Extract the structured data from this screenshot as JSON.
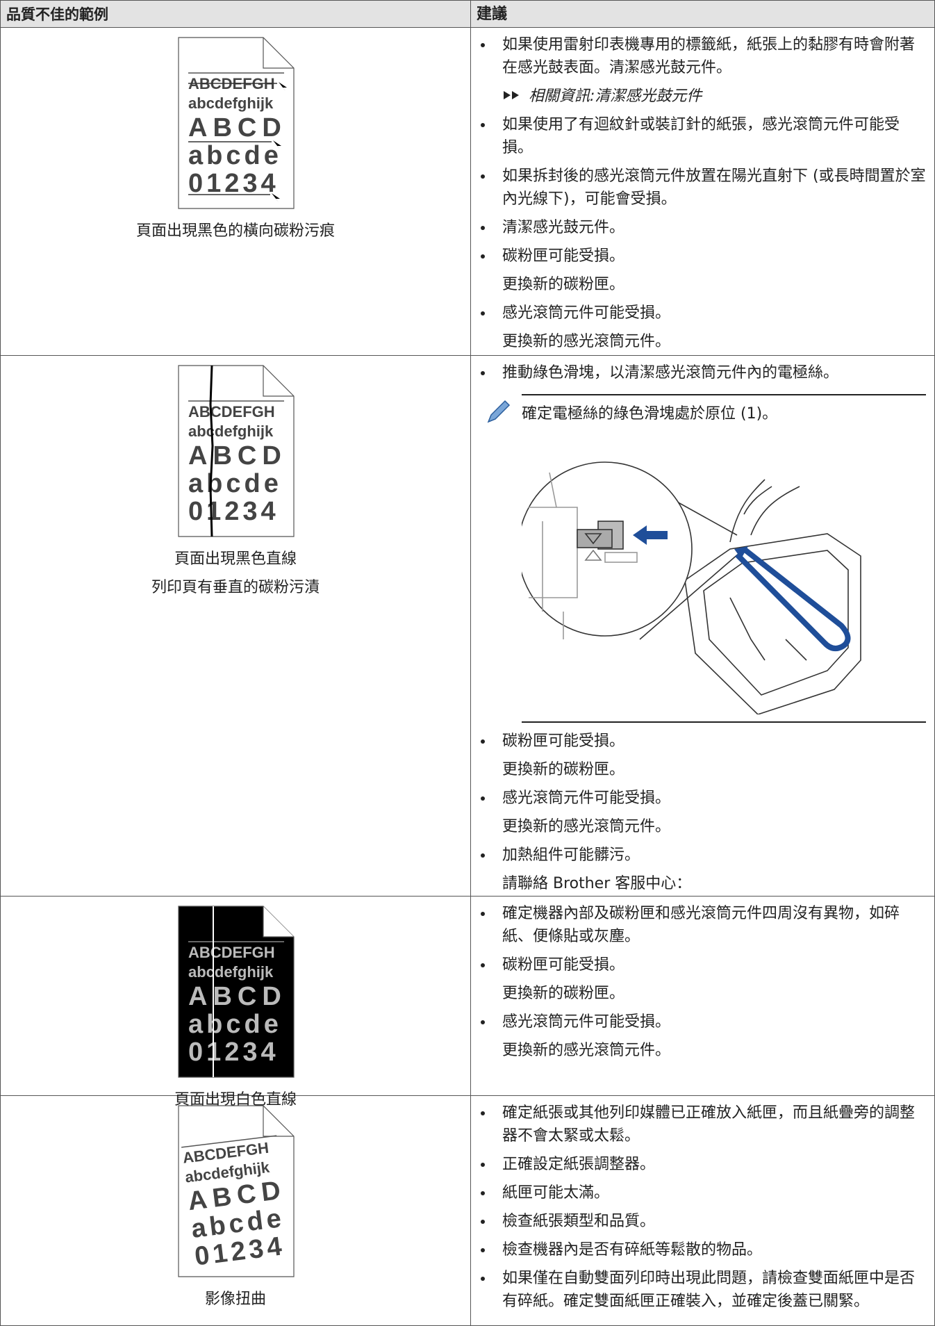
{
  "table": {
    "headers": [
      "品質不佳的範例",
      "建議"
    ],
    "rows": [
      {
        "sample": [
          "ABCDEFGH",
          "abcdefghijk",
          "ABCD",
          "abcde",
          "01234"
        ],
        "caption": [
          "頁面出現黑色的橫向碳粉污痕"
        ],
        "suggestions": [
          {
            "text": "如果使用雷射印表機專用的標籤紙，紙張上的黏膠有時會附著在感光鼓表面。清潔感光鼓元件。",
            "link": "相關資訊:清潔感光鼓元件"
          },
          {
            "text": "如果使用了有迴紋針或裝訂針的紙張，感光滾筒元件可能受損。"
          },
          {
            "text": "如果拆封後的感光滾筒元件放置在陽光直射下 (或長時間置於室內光線下)，可能會受損。"
          },
          {
            "text": "清潔感光鼓元件。"
          },
          {
            "text": "碳粉匣可能受損。",
            "sub": [
              "更換新的碳粉匣。"
            ]
          },
          {
            "text": "感光滾筒元件可能受損。",
            "sub": [
              "更換新的感光滾筒元件。"
            ]
          }
        ]
      },
      {
        "sample": [
          "ABCDEFGH",
          "abcdefghijk",
          "ABCD",
          "abcde",
          "01234"
        ],
        "caption": [
          "頁面出現黑色直線",
          "列印頁有垂直的碳粉污漬"
        ],
        "suggestions": [
          {
            "text": "推動綠色滑塊，以清潔感光滾筒元件內的電極絲。",
            "note": "確定電極絲的綠色滑塊處於原位 (1)。"
          },
          {
            "text": "碳粉匣可能受損。",
            "sub": [
              "更換新的碳粉匣。"
            ]
          },
          {
            "text": "感光滾筒元件可能受損。",
            "sub": [
              "更換新的感光滾筒元件。"
            ]
          },
          {
            "text": "加熱組件可能髒污。",
            "sub": [
              "請聯絡 Brother 客服中心："
            ]
          }
        ]
      },
      {
        "sample": [
          "ABCDEFGH",
          "abcdefghijk",
          "ABCD",
          "abcde",
          "01234"
        ],
        "caption": [
          "頁面出現白色直線"
        ],
        "suggestions": [
          {
            "text": "確定機器內部及碳粉匣和感光滾筒元件四周沒有異物，如碎紙、便條貼或灰塵。"
          },
          {
            "text": "碳粉匣可能受損。",
            "sub": [
              "更換新的碳粉匣。"
            ]
          },
          {
            "text": "感光滾筒元件可能受損。",
            "sub": [
              "更換新的感光滾筒元件。"
            ]
          }
        ]
      },
      {
        "sample": [
          "ABCDEFGH",
          "abcdefghijk",
          "ABCD",
          "abcde",
          "01234"
        ],
        "caption": [
          "影像扭曲"
        ],
        "suggestions": [
          {
            "text": "確定紙張或其他列印媒體已正確放入紙匣，而且紙疊旁的調整器不會太緊或太鬆。"
          },
          {
            "text": "正確設定紙張調整器。"
          },
          {
            "text": "紙匣可能太滿。"
          },
          {
            "text": "檢查紙張類型和品質。"
          },
          {
            "text": "檢查機器內是否有碎紙等鬆散的物品。"
          },
          {
            "text": "如果僅在自動雙面列印時出現此問題，請檢查雙面紙匣中是否有碎紙。確定雙面紙匣正確裝入，並確定後蓋已關緊。"
          }
        ]
      }
    ]
  }
}
